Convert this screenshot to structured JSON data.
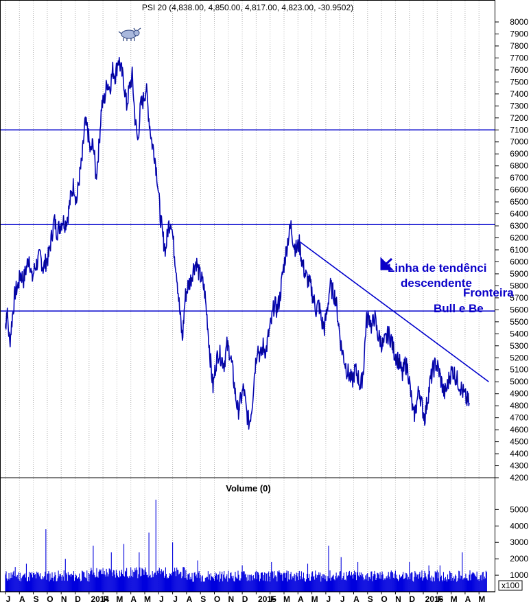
{
  "chart_data": [
    {
      "type": "line",
      "title": "PSI 20 (4,838.00, 4,850.00, 4,817.00, 4,823.00, -30.9502)",
      "ylim": [
        4120,
        8080
      ],
      "yticks": [
        4200,
        4300,
        4400,
        4500,
        4600,
        4700,
        4800,
        4900,
        5000,
        5100,
        5200,
        5300,
        5400,
        5500,
        5600,
        5700,
        5800,
        5900,
        6000,
        6100,
        6200,
        6300,
        6400,
        6500,
        6600,
        6700,
        6800,
        6900,
        7000,
        7100,
        7200,
        7300,
        7400,
        7500,
        7600,
        7700,
        7800,
        7900,
        8000
      ],
      "xlim": [
        0,
        36
      ],
      "month_ticks": [
        {
          "x": 0,
          "label": "J"
        },
        {
          "x": 1,
          "label": "A"
        },
        {
          "x": 2,
          "label": "S"
        },
        {
          "x": 3,
          "label": "O"
        },
        {
          "x": 4,
          "label": "N"
        },
        {
          "x": 5,
          "label": "D"
        },
        {
          "x": 6,
          "label": "2014"
        },
        {
          "x": 7,
          "label": "F"
        },
        {
          "x": 8,
          "label": "M"
        },
        {
          "x": 9,
          "label": "A"
        },
        {
          "x": 10,
          "label": "M"
        },
        {
          "x": 11,
          "label": "J"
        },
        {
          "x": 12,
          "label": "J"
        },
        {
          "x": 13,
          "label": "A"
        },
        {
          "x": 14,
          "label": "S"
        },
        {
          "x": 15,
          "label": "O"
        },
        {
          "x": 16,
          "label": "N"
        },
        {
          "x": 17,
          "label": "D"
        },
        {
          "x": 18,
          "label": "2015"
        },
        {
          "x": 19,
          "label": "F"
        },
        {
          "x": 20,
          "label": "M"
        },
        {
          "x": 21,
          "label": "A"
        },
        {
          "x": 22,
          "label": "M"
        },
        {
          "x": 23,
          "label": "J"
        },
        {
          "x": 24,
          "label": "J"
        },
        {
          "x": 25,
          "label": "A"
        },
        {
          "x": 26,
          "label": "S"
        },
        {
          "x": 27,
          "label": "O"
        },
        {
          "x": 28,
          "label": "N"
        },
        {
          "x": 29,
          "label": "D"
        },
        {
          "x": 30,
          "label": "2016"
        },
        {
          "x": 31,
          "label": "F"
        },
        {
          "x": 32,
          "label": "M"
        },
        {
          "x": 33,
          "label": "A"
        },
        {
          "x": 34,
          "label": "M"
        }
      ],
      "series": [
        {
          "color": "#0000dd",
          "points": [
            [
              0.0,
              5450
            ],
            [
              0.1,
              5600
            ],
            [
              0.3,
              5320
            ],
            [
              0.5,
              5550
            ],
            [
              0.7,
              5750
            ],
            [
              0.9,
              5800
            ],
            [
              1.1,
              5900
            ],
            [
              1.3,
              5850
            ],
            [
              1.5,
              5950
            ],
            [
              1.7,
              6050
            ],
            [
              1.9,
              5850
            ],
            [
              2.1,
              5950
            ],
            [
              2.3,
              6000
            ],
            [
              2.5,
              6050
            ],
            [
              2.7,
              5950
            ],
            [
              2.9,
              6000
            ],
            [
              3.1,
              6050
            ],
            [
              3.3,
              6200
            ],
            [
              3.5,
              6350
            ],
            [
              3.7,
              6250
            ],
            [
              3.9,
              6300
            ],
            [
              4.1,
              6350
            ],
            [
              4.3,
              6320
            ],
            [
              4.5,
              6400
            ],
            [
              4.7,
              6550
            ],
            [
              4.9,
              6650
            ],
            [
              5.1,
              6500
            ],
            [
              5.3,
              6700
            ],
            [
              5.5,
              6850
            ],
            [
              5.7,
              7150
            ],
            [
              5.9,
              7100
            ],
            [
              6.1,
              6900
            ],
            [
              6.3,
              7000
            ],
            [
              6.5,
              6700
            ],
            [
              6.7,
              6950
            ],
            [
              6.9,
              7300
            ],
            [
              7.1,
              7350
            ],
            [
              7.3,
              7500
            ],
            [
              7.5,
              7450
            ],
            [
              7.7,
              7600
            ],
            [
              7.9,
              7550
            ],
            [
              8.1,
              7700
            ],
            [
              8.3,
              7600
            ],
            [
              8.5,
              7500
            ],
            [
              8.7,
              7300
            ],
            [
              8.9,
              7450
            ],
            [
              9.1,
              7550
            ],
            [
              9.3,
              7200
            ],
            [
              9.5,
              7000
            ],
            [
              9.7,
              7300
            ],
            [
              9.9,
              7350
            ],
            [
              10.1,
              7450
            ],
            [
              10.3,
              7200
            ],
            [
              10.5,
              7000
            ],
            [
              10.7,
              6900
            ],
            [
              10.9,
              6700
            ],
            [
              11.1,
              6400
            ],
            [
              11.3,
              6200
            ],
            [
              11.5,
              6100
            ],
            [
              11.7,
              6300
            ],
            [
              11.9,
              6350
            ],
            [
              12.1,
              6100
            ],
            [
              12.3,
              5900
            ],
            [
              12.5,
              5600
            ],
            [
              12.7,
              5350
            ],
            [
              12.9,
              5700
            ],
            [
              13.1,
              5800
            ],
            [
              13.3,
              5850
            ],
            [
              13.5,
              5950
            ],
            [
              13.7,
              6000
            ],
            [
              13.9,
              5900
            ],
            [
              14.1,
              5850
            ],
            [
              14.3,
              5750
            ],
            [
              14.5,
              5500
            ],
            [
              14.7,
              5200
            ],
            [
              14.9,
              4950
            ],
            [
              15.1,
              5150
            ],
            [
              15.3,
              5250
            ],
            [
              15.5,
              5200
            ],
            [
              15.7,
              5150
            ],
            [
              15.9,
              5300
            ],
            [
              16.1,
              5250
            ],
            [
              16.3,
              5100
            ],
            [
              16.5,
              4900
            ],
            [
              16.7,
              4750
            ],
            [
              16.9,
              4850
            ],
            [
              17.1,
              4950
            ],
            [
              17.3,
              4750
            ],
            [
              17.5,
              4650
            ],
            [
              17.7,
              4800
            ],
            [
              17.9,
              5100
            ],
            [
              18.1,
              5300
            ],
            [
              18.3,
              5200
            ],
            [
              18.5,
              5300
            ],
            [
              18.7,
              5250
            ],
            [
              18.9,
              5400
            ],
            [
              19.1,
              5500
            ],
            [
              19.3,
              5650
            ],
            [
              19.5,
              5600
            ],
            [
              19.7,
              5700
            ],
            [
              19.9,
              5900
            ],
            [
              20.1,
              6050
            ],
            [
              20.3,
              6200
            ],
            [
              20.5,
              6300
            ],
            [
              20.7,
              6150
            ],
            [
              20.9,
              6100
            ],
            [
              21.1,
              6150
            ],
            [
              21.3,
              6000
            ],
            [
              21.5,
              5900
            ],
            [
              21.7,
              5850
            ],
            [
              21.9,
              5800
            ],
            [
              22.1,
              5700
            ],
            [
              22.3,
              5600
            ],
            [
              22.5,
              5650
            ],
            [
              22.7,
              5500
            ],
            [
              22.9,
              5450
            ],
            [
              23.1,
              5600
            ],
            [
              23.3,
              5800
            ],
            [
              23.5,
              5750
            ],
            [
              23.7,
              5700
            ],
            [
              23.9,
              5500
            ],
            [
              24.1,
              5300
            ],
            [
              24.3,
              5200
            ],
            [
              24.5,
              5100
            ],
            [
              24.7,
              5050
            ],
            [
              24.9,
              5000
            ],
            [
              25.1,
              5100
            ],
            [
              25.3,
              5050
            ],
            [
              25.5,
              4950
            ],
            [
              25.7,
              5100
            ],
            [
              25.9,
              5500
            ],
            [
              26.1,
              5550
            ],
            [
              26.3,
              5450
            ],
            [
              26.5,
              5550
            ],
            [
              26.7,
              5400
            ],
            [
              26.9,
              5350
            ],
            [
              27.1,
              5300
            ],
            [
              27.3,
              5350
            ],
            [
              27.5,
              5400
            ],
            [
              27.7,
              5350
            ],
            [
              27.9,
              5250
            ],
            [
              28.1,
              5200
            ],
            [
              28.3,
              5150
            ],
            [
              28.5,
              5050
            ],
            [
              28.7,
              5150
            ],
            [
              28.9,
              5100
            ],
            [
              29.1,
              4900
            ],
            [
              29.3,
              4700
            ],
            [
              29.5,
              4800
            ],
            [
              29.7,
              4950
            ],
            [
              29.9,
              4800
            ],
            [
              30.1,
              4700
            ],
            [
              30.3,
              4850
            ],
            [
              30.5,
              5000
            ],
            [
              30.7,
              5100
            ],
            [
              30.9,
              5150
            ],
            [
              31.1,
              5100
            ],
            [
              31.3,
              5000
            ],
            [
              31.5,
              4900
            ],
            [
              31.7,
              4950
            ],
            [
              31.9,
              5050
            ],
            [
              32.1,
              5100
            ],
            [
              32.3,
              5050
            ],
            [
              32.5,
              5000
            ],
            [
              32.7,
              4950
            ],
            [
              32.9,
              4900
            ],
            [
              33.1,
              4850
            ],
            [
              33.3,
              4823
            ]
          ]
        }
      ],
      "hlines": [
        7100,
        6310,
        5590
      ],
      "trendline": [
        [
          21.1,
          6170
        ],
        [
          34.7,
          5000
        ]
      ],
      "annotations": [
        "Linha de tendência descendente",
        "Fronteira Bull e o Bear"
      ],
      "grid": true
    },
    {
      "type": "bar",
      "title": "Volume (0)",
      "ylim": [
        0,
        6200
      ],
      "yticks": [
        1000,
        2000,
        3000,
        4000,
        5000
      ],
      "unit_label": "x100",
      "color": "#0000dd",
      "spikes": [
        [
          0.7,
          1500
        ],
        [
          1.5,
          1700
        ],
        [
          2.9,
          3800
        ],
        [
          4.3,
          2000
        ],
        [
          6.3,
          2800
        ],
        [
          7.6,
          2400
        ],
        [
          8.5,
          2900
        ],
        [
          9.6,
          2400
        ],
        [
          10.3,
          3600
        ],
        [
          10.8,
          5600
        ],
        [
          12.0,
          3000
        ],
        [
          13.8,
          1900
        ],
        [
          17.0,
          1600
        ],
        [
          19.1,
          1800
        ],
        [
          21.7,
          1700
        ],
        [
          23.2,
          2800
        ],
        [
          24.1,
          2100
        ],
        [
          25.3,
          1800
        ],
        [
          29.0,
          1800
        ],
        [
          30.4,
          1600
        ],
        [
          31.2,
          1600
        ],
        [
          32.8,
          2400
        ]
      ]
    }
  ]
}
